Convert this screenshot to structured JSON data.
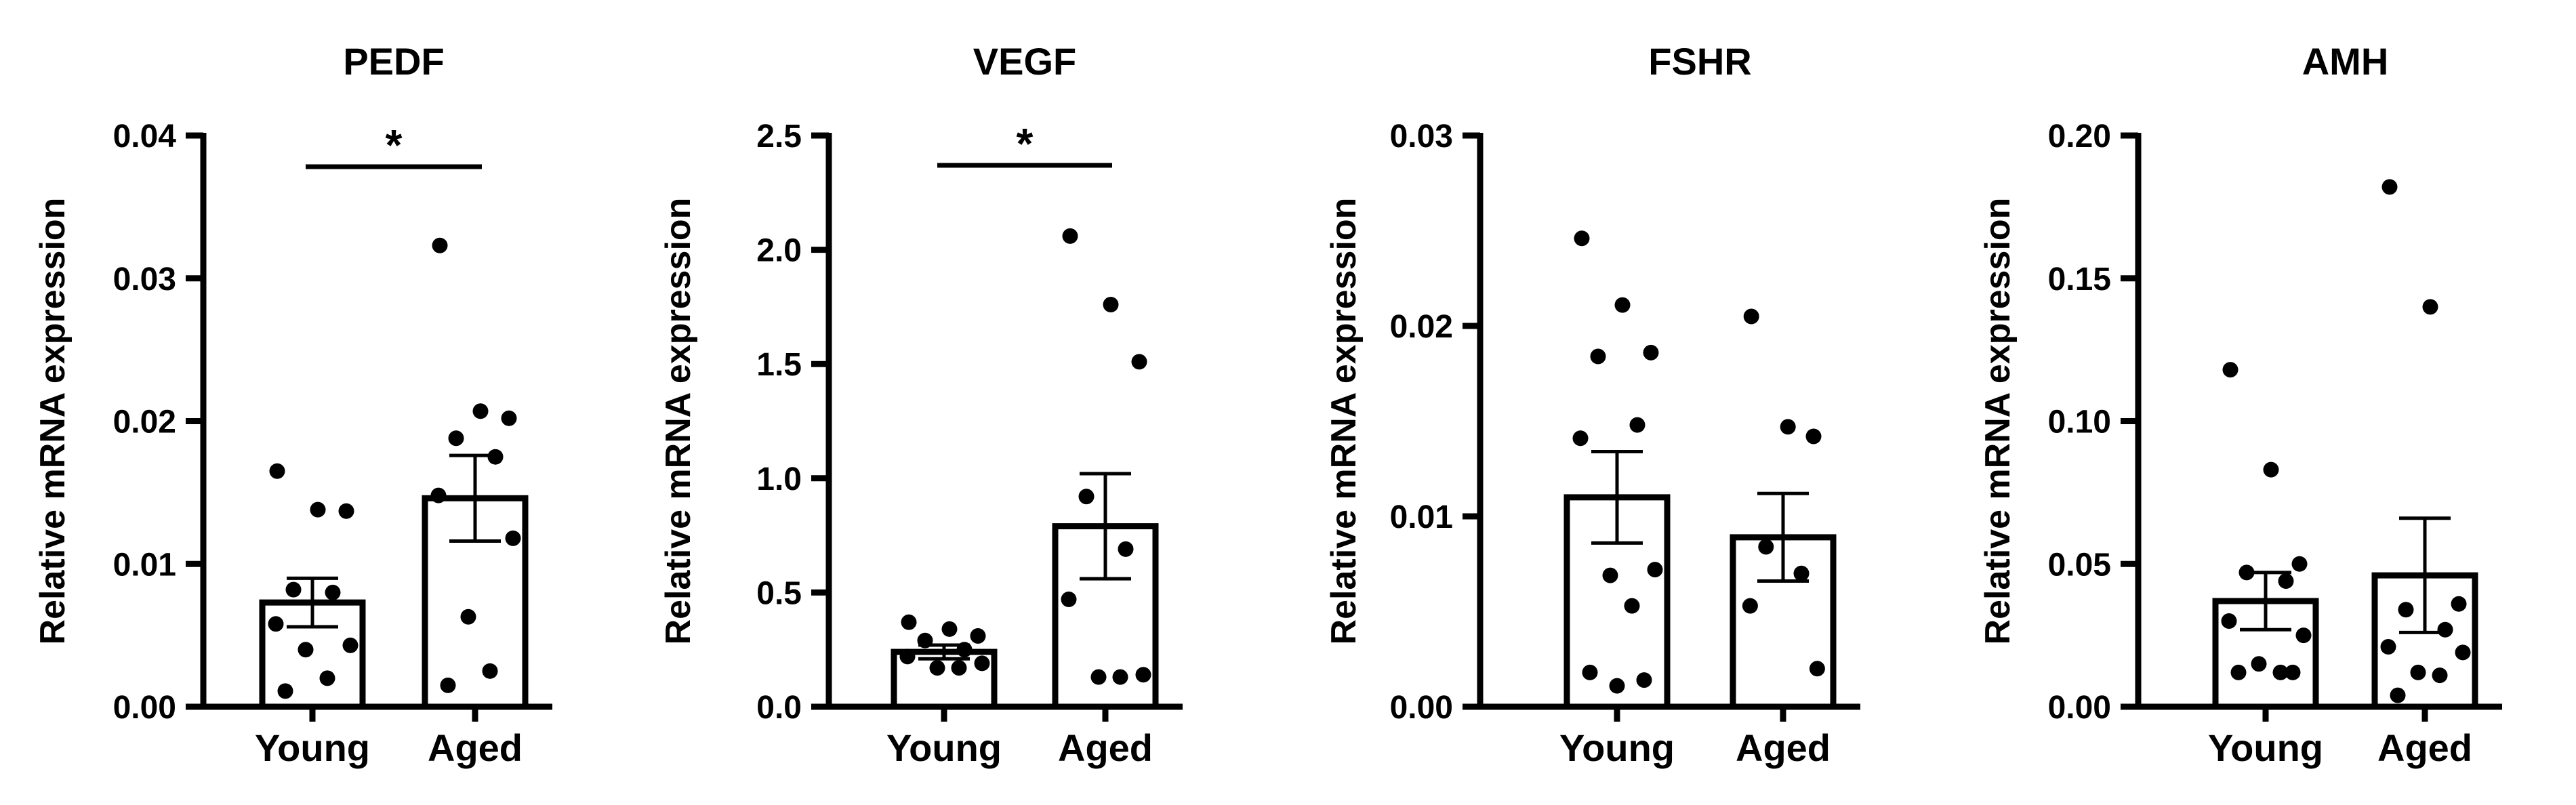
{
  "ylabel": "Relative mRNA expression",
  "chart_data": [
    {
      "type": "bar",
      "title": "PEDF",
      "xlabel": "",
      "ylabel": "Relative mRNA expression",
      "categories": [
        "Young",
        "Aged"
      ],
      "ylim": [
        0,
        0.04
      ],
      "yticks": [
        0.0,
        0.01,
        0.02,
        0.03,
        0.04
      ],
      "ytick_labels": [
        "0.00",
        "0.01",
        "0.02",
        "0.03",
        "0.04"
      ],
      "values": [
        0.0073,
        0.0146
      ],
      "sem": [
        0.0017,
        0.003
      ],
      "points": [
        [
          0.0165,
          0.0138,
          0.0137,
          0.0082,
          0.008,
          0.0058,
          0.0043,
          0.004,
          0.002,
          0.0011
        ],
        [
          0.0323,
          0.0207,
          0.0202,
          0.0188,
          0.0175,
          0.0148,
          0.0118,
          0.0063,
          0.0025,
          0.0015
        ]
      ],
      "significance": {
        "pair": [
          "Young",
          "Aged"
        ],
        "label": "*"
      }
    },
    {
      "type": "bar",
      "title": "VEGF",
      "xlabel": "",
      "ylabel": "Relative mRNA expression",
      "categories": [
        "Young",
        "Aged"
      ],
      "ylim": [
        0,
        2.5
      ],
      "yticks": [
        0.0,
        0.5,
        1.0,
        1.5,
        2.0,
        2.5
      ],
      "ytick_labels": [
        "0.0",
        "0.5",
        "1.0",
        "1.5",
        "2.0",
        "2.5"
      ],
      "values": [
        0.24,
        0.79
      ],
      "sem": [
        0.03,
        0.23
      ],
      "points": [
        [
          0.37,
          0.34,
          0.31,
          0.29,
          0.25,
          0.22,
          0.19,
          0.17,
          0.17
        ],
        [
          2.06,
          1.76,
          1.51,
          0.92,
          0.69,
          0.47,
          0.14,
          0.13,
          0.13
        ]
      ],
      "significance": {
        "pair": [
          "Young",
          "Aged"
        ],
        "label": "*"
      }
    },
    {
      "type": "bar",
      "title": "FSHR",
      "xlabel": "",
      "ylabel": "Relative mRNA expression",
      "categories": [
        "Young",
        "Aged"
      ],
      "ylim": [
        0,
        0.03
      ],
      "yticks": [
        0.0,
        0.01,
        0.02,
        0.03
      ],
      "ytick_labels": [
        "0.00",
        "0.01",
        "0.02",
        "0.03"
      ],
      "values": [
        0.011,
        0.0089
      ],
      "sem": [
        0.0024,
        0.0023
      ],
      "points": [
        [
          0.0246,
          0.0211,
          0.0186,
          0.0184,
          0.0148,
          0.0141,
          0.0072,
          0.0069,
          0.0053,
          0.0018,
          0.0014,
          0.0011
        ],
        [
          0.0205,
          0.0147,
          0.0142,
          0.0084,
          0.007,
          0.0053,
          0.002
        ]
      ],
      "significance": null
    },
    {
      "type": "bar",
      "title": "AMH",
      "xlabel": "",
      "ylabel": "Relative mRNA expression",
      "categories": [
        "Young",
        "Aged"
      ],
      "ylim": [
        0,
        0.2
      ],
      "yticks": [
        0.0,
        0.05,
        0.1,
        0.15,
        0.2
      ],
      "ytick_labels": [
        "0.00",
        "0.05",
        "0.10",
        "0.15",
        "0.20"
      ],
      "values": [
        0.037,
        0.046
      ],
      "sem": [
        0.01,
        0.02
      ],
      "points": [
        [
          0.118,
          0.083,
          0.05,
          0.047,
          0.044,
          0.03,
          0.025,
          0.015,
          0.012,
          0.012,
          0.012
        ],
        [
          0.182,
          0.14,
          0.036,
          0.034,
          0.027,
          0.021,
          0.019,
          0.012,
          0.011,
          0.004
        ]
      ],
      "significance": null
    }
  ]
}
